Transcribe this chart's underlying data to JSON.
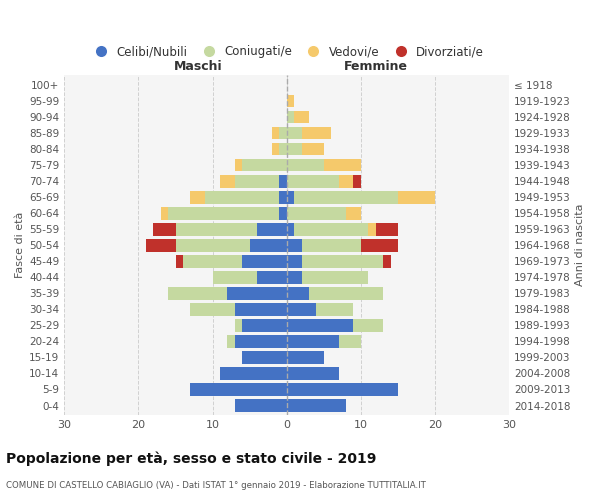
{
  "age_groups": [
    "0-4",
    "5-9",
    "10-14",
    "15-19",
    "20-24",
    "25-29",
    "30-34",
    "35-39",
    "40-44",
    "45-49",
    "50-54",
    "55-59",
    "60-64",
    "65-69",
    "70-74",
    "75-79",
    "80-84",
    "85-89",
    "90-94",
    "95-99",
    "100+"
  ],
  "birth_years": [
    "2014-2018",
    "2009-2013",
    "2004-2008",
    "1999-2003",
    "1994-1998",
    "1989-1993",
    "1984-1988",
    "1979-1983",
    "1974-1978",
    "1969-1973",
    "1964-1968",
    "1959-1963",
    "1954-1958",
    "1949-1953",
    "1944-1948",
    "1939-1943",
    "1934-1938",
    "1929-1933",
    "1924-1928",
    "1919-1923",
    "≤ 1918"
  ],
  "males": {
    "celibi": [
      7,
      13,
      9,
      6,
      7,
      6,
      7,
      8,
      4,
      6,
      5,
      4,
      1,
      1,
      1,
      0,
      0,
      0,
      0,
      0,
      0
    ],
    "coniugati": [
      0,
      0,
      0,
      0,
      1,
      1,
      6,
      8,
      6,
      8,
      10,
      11,
      15,
      10,
      6,
      6,
      1,
      1,
      0,
      0,
      0
    ],
    "vedovi": [
      0,
      0,
      0,
      0,
      0,
      0,
      0,
      0,
      0,
      0,
      0,
      0,
      1,
      2,
      2,
      1,
      1,
      1,
      0,
      0,
      0
    ],
    "divorziati": [
      0,
      0,
      0,
      0,
      0,
      0,
      0,
      0,
      0,
      1,
      4,
      3,
      0,
      0,
      0,
      0,
      0,
      0,
      0,
      0,
      0
    ]
  },
  "females": {
    "nubili": [
      8,
      15,
      7,
      5,
      7,
      9,
      4,
      3,
      2,
      2,
      2,
      1,
      0,
      1,
      0,
      0,
      0,
      0,
      0,
      0,
      0
    ],
    "coniugate": [
      0,
      0,
      0,
      0,
      3,
      4,
      5,
      10,
      9,
      11,
      8,
      10,
      8,
      14,
      7,
      5,
      2,
      2,
      1,
      0,
      0
    ],
    "vedove": [
      0,
      0,
      0,
      0,
      0,
      0,
      0,
      0,
      0,
      0,
      0,
      1,
      2,
      5,
      2,
      5,
      3,
      4,
      2,
      1,
      0
    ],
    "divorziate": [
      0,
      0,
      0,
      0,
      0,
      0,
      0,
      0,
      0,
      1,
      5,
      3,
      0,
      0,
      1,
      0,
      0,
      0,
      0,
      0,
      0
    ]
  },
  "colors": {
    "celibi": "#4472c4",
    "coniugati": "#c5d9a0",
    "vedovi": "#f5c96b",
    "divorziati": "#c0312b"
  },
  "xlim": [
    -30,
    30
  ],
  "title": "Popolazione per età, sesso e stato civile - 2019",
  "subtitle": "COMUNE DI CASTELLO CABIAGLIO (VA) - Dati ISTAT 1° gennaio 2019 - Elaborazione TUTTITALIA.IT",
  "xlabel_left": "Maschi",
  "xlabel_right": "Femmine",
  "ylabel_left": "Fasce di età",
  "ylabel_right": "Anni di nascita",
  "legend_labels": [
    "Celibi/Nubili",
    "Coniugati/e",
    "Vedovi/e",
    "Divorziati/e"
  ],
  "bg_color": "#ffffff",
  "grid_color": "#cccccc"
}
